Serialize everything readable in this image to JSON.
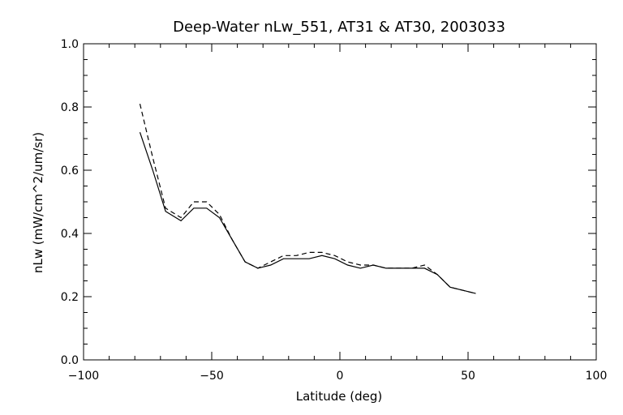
{
  "chart_data": {
    "type": "line",
    "title": "Deep-Water nLw_551, AT31 & AT30, 2003033",
    "xlabel": "Latitude (deg)",
    "ylabel": "nLw (mW/cm^2/um/sr)",
    "xlim": [
      -100,
      100
    ],
    "ylim": [
      0.0,
      1.0
    ],
    "xticks": [
      -100,
      -50,
      0,
      50,
      100
    ],
    "xtick_labels": [
      "−100",
      "−50",
      "0",
      "50",
      "100"
    ],
    "yticks": [
      0.0,
      0.2,
      0.4,
      0.6,
      0.8,
      1.0
    ],
    "ytick_labels": [
      "0.0",
      "0.2",
      "0.4",
      "0.6",
      "0.8",
      "1.0"
    ],
    "grid": false,
    "series": [
      {
        "style": "solid",
        "x": [
          -78,
          -73,
          -68,
          -62,
          -57,
          -52,
          -47,
          -42,
          -37,
          -32,
          -27,
          -22,
          -17,
          -12,
          -7,
          -2,
          3,
          8,
          13,
          18,
          23,
          28,
          33,
          38,
          43,
          48,
          53
        ],
        "y": [
          0.72,
          0.6,
          0.47,
          0.44,
          0.48,
          0.48,
          0.45,
          0.38,
          0.31,
          0.29,
          0.3,
          0.32,
          0.32,
          0.32,
          0.33,
          0.32,
          0.3,
          0.29,
          0.3,
          0.29,
          0.29,
          0.29,
          0.29,
          0.27,
          0.23,
          0.22,
          0.21
        ]
      },
      {
        "style": "dashed",
        "x": [
          -78,
          -73,
          -68,
          -62,
          -57,
          -52,
          -47,
          -42,
          -37,
          -32,
          -27,
          -22,
          -17,
          -12,
          -7,
          -2,
          3,
          8,
          13,
          18,
          23,
          28,
          33,
          38,
          43,
          48,
          53
        ],
        "y": [
          0.81,
          0.64,
          0.48,
          0.45,
          0.5,
          0.5,
          0.46,
          0.38,
          0.31,
          0.29,
          0.31,
          0.33,
          0.33,
          0.34,
          0.34,
          0.33,
          0.31,
          0.3,
          0.3,
          0.29,
          0.29,
          0.29,
          0.3,
          0.27,
          0.23,
          0.22,
          0.21
        ]
      }
    ]
  }
}
